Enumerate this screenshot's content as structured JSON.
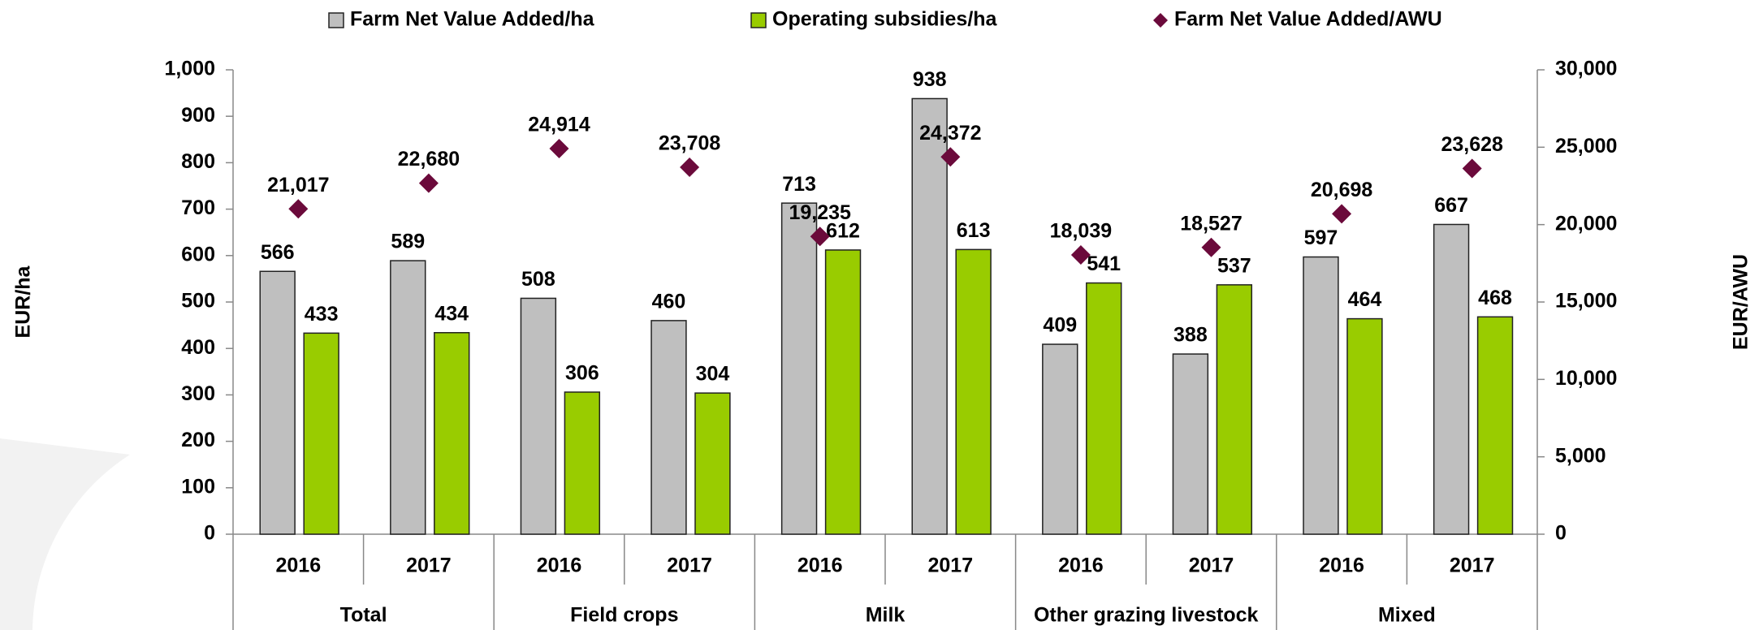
{
  "chart_data": {
    "type": "bar",
    "categories": [
      "2016",
      "2017",
      "2016",
      "2017",
      "2016",
      "2017",
      "2016",
      "2017",
      "2016",
      "2017"
    ],
    "groups": [
      "Total",
      "Field crops",
      "Milk",
      "Other grazing livestock",
      "Mixed"
    ],
    "ylabel": "EUR/ha",
    "y2label": "EUR/AWU",
    "ylim": [
      0,
      1000
    ],
    "yticks": [
      0,
      100,
      200,
      300,
      400,
      500,
      600,
      700,
      800,
      900,
      {
        "value": 1000,
        "label": "1,000"
      }
    ],
    "y2lim": [
      0,
      30000
    ],
    "y2ticks": [
      0,
      {
        "value": 5000,
        "label": "5,000"
      },
      {
        "value": 10000,
        "label": "10,000"
      },
      {
        "value": 15000,
        "label": "15,000"
      },
      {
        "value": 20000,
        "label": "20,000"
      },
      {
        "value": 25000,
        "label": "25,000"
      },
      {
        "value": 30000,
        "label": "30,000"
      }
    ],
    "series": [
      {
        "name": "Farm Net Value Added/ha",
        "color": "#bfbfbf",
        "values": [
          566,
          589,
          508,
          460,
          713,
          938,
          409,
          388,
          597,
          667
        ]
      },
      {
        "name": "Operating subsidies/ha",
        "color": "#99cc00",
        "values": [
          433,
          434,
          306,
          304,
          612,
          613,
          541,
          537,
          464,
          468
        ]
      },
      {
        "name": "Farm Net Value Added/AWU",
        "color": "#6b0a3b",
        "axis": "y2",
        "marker": "diamond",
        "values": [
          21017,
          22680,
          24914,
          23708,
          19235,
          24372,
          18039,
          18527,
          20698,
          23628
        ],
        "value_labels": [
          "21,017",
          "22,680",
          "24,914",
          "23,708",
          "19,235",
          "24,372",
          "18,039",
          "18,527",
          "20,698",
          "23,628"
        ]
      }
    ]
  }
}
